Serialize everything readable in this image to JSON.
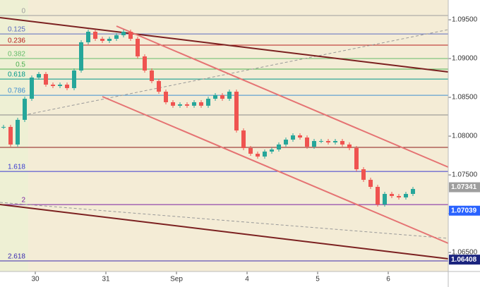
{
  "chart_data": {
    "type": "candlestick",
    "x": [
      -0.45,
      -0.35,
      -0.25,
      -0.15,
      -0.05,
      0.05,
      0.15,
      0.25,
      0.35,
      0.45,
      0.55,
      0.65,
      0.75,
      0.85,
      0.95,
      1.05,
      1.15,
      1.25,
      1.35,
      1.45,
      1.55,
      1.65,
      1.75,
      1.85,
      1.95,
      2.05,
      2.15,
      2.25,
      2.35,
      2.45,
      2.55,
      2.65,
      2.75,
      2.85,
      2.95,
      3.05,
      3.15,
      3.25,
      3.35,
      3.45,
      3.55,
      3.65,
      3.75,
      3.85,
      3.95,
      4.05,
      4.15,
      4.25,
      4.35,
      4.45,
      4.55,
      4.65,
      4.75,
      4.85,
      4.95,
      5.05,
      5.15,
      5.25,
      5.35
    ],
    "values": [
      1.08119,
      1.07892,
      1.0821,
      1.08482,
      1.08755,
      1.08801,
      1.08664,
      1.08646,
      1.08664,
      1.08619,
      1.08846,
      1.0921,
      1.09346,
      1.09255,
      1.09228,
      1.09255,
      1.09301,
      1.09346,
      1.09255,
      1.09028,
      1.08846,
      1.0871,
      1.08573,
      1.08437,
      1.08392,
      1.0841,
      1.08392,
      1.08437,
      1.08392,
      1.08482,
      1.08528,
      1.08482,
      1.08573,
      1.08073,
      1.07846,
      1.07773,
      1.07737,
      1.07801,
      1.07828,
      1.07892,
      1.07955,
      1.0801,
      1.07982,
      1.07864,
      1.07937,
      1.07937,
      1.07919,
      1.07937,
      1.07892,
      1.07846,
      1.07573,
      1.07437,
      1.07346,
      1.07119,
      1.07255,
      1.07228,
      1.0721,
      1.07255,
      1.07319
    ],
    "up_color": "#26a69a",
    "down_color": "#ef5350",
    "xlim": [
      -0.5,
      5.85
    ],
    "xticks": [
      {
        "value": 0,
        "label": "30"
      },
      {
        "value": 1,
        "label": "31"
      },
      {
        "value": 2,
        "label": "Sep"
      },
      {
        "value": 3,
        "label": "4"
      },
      {
        "value": 4,
        "label": "5"
      },
      {
        "value": 5,
        "label": "6"
      }
    ],
    "ylim": [
      1.06255,
      1.09755
    ],
    "yticks": [
      {
        "value": 1.095,
        "label": "1.09500"
      },
      {
        "value": 1.09,
        "label": "1.09000"
      },
      {
        "value": 1.085,
        "label": "1.08500"
      },
      {
        "value": 1.08,
        "label": "1.08000"
      },
      {
        "value": 1.075,
        "label": "1.07500"
      },
      {
        "value": 1.07,
        "label": "1.07000"
      },
      {
        "value": 1.065,
        "label": "1.06500"
      }
    ],
    "levels": [
      {
        "label": "0",
        "value": 1.09555,
        "color": "#9e9e9e"
      },
      {
        "label": "0.125",
        "value": 1.09318,
        "color": "#5c6bc0"
      },
      {
        "label": "0.236",
        "value": 1.09173,
        "color": "#b71c1c"
      },
      {
        "label": "0.382",
        "value": 1.09,
        "color": "#66bb6a"
      },
      {
        "label": "0.5",
        "value": 1.08864,
        "color": "#4caf50"
      },
      {
        "label": "0.618",
        "value": 1.08736,
        "color": "#009688"
      },
      {
        "label": "0.786",
        "value": 1.08527,
        "color": "#3f8fd0"
      },
      {
        "label": null,
        "value": 1.08273,
        "color": "#8a8a8a"
      },
      {
        "label": null,
        "value": 1.07855,
        "color": "#8b1a1a"
      },
      {
        "label": "1.618",
        "value": 1.07545,
        "color": "#3a3ad0"
      },
      {
        "label": "2",
        "value": 1.07118,
        "color": "#7b1fa2"
      },
      {
        "label": "2.618",
        "value": 1.06391,
        "color": "#3b2ab0"
      }
    ],
    "price_labels": [
      {
        "value": 1.07341,
        "color": "#9e9e9e"
      },
      {
        "value": 1.07039,
        "color": "#2962ff"
      },
      {
        "value": 1.06408,
        "color": "#1a237e"
      }
    ]
  }
}
